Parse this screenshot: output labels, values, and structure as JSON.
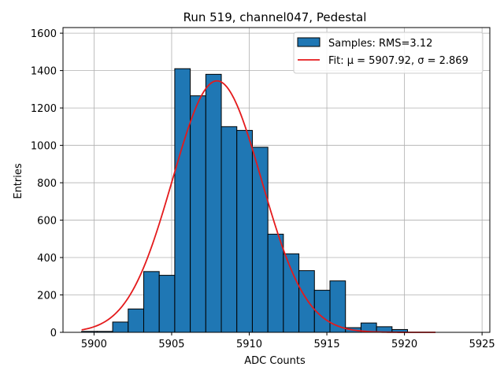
{
  "chart_data": {
    "type": "bar",
    "title": "Run 519, channel047, Pedestal",
    "xlabel": "ADC Counts",
    "ylabel": "Entries",
    "xlim": [
      5898,
      5925.5
    ],
    "ylim": [
      0,
      1630
    ],
    "xticks": [
      5900,
      5905,
      5910,
      5915,
      5920,
      5925
    ],
    "yticks": [
      0,
      200,
      400,
      600,
      800,
      1000,
      1200,
      1400,
      1600
    ],
    "grid": true,
    "legend_position": "top-right",
    "bin_edges": [
      5899.2,
      5900.2,
      5901.2,
      5902.2,
      5903.2,
      5904.2,
      5905.2,
      5906.2,
      5907.2,
      5908.2,
      5909.2,
      5910.2,
      5911.2,
      5912.2,
      5913.2,
      5914.2,
      5915.2,
      5916.2,
      5917.2,
      5918.2,
      5919.2,
      5920.2
    ],
    "series": [
      {
        "name": "Samples: RMS=3.12",
        "kind": "histogram",
        "color": "#1f77b4",
        "values": [
          5,
          5,
          55,
          125,
          325,
          305,
          1410,
          1265,
          1380,
          1100,
          1080,
          990,
          525,
          420,
          330,
          225,
          275,
          25,
          50,
          30,
          15
        ]
      },
      {
        "name": "Fit: μ = 5907.92, σ = 2.869",
        "kind": "gaussian-fit",
        "color": "#e41a1c",
        "mu": 5907.92,
        "sigma": 2.869,
        "amplitude": 1345,
        "x_range": [
          5899.2,
          5922.0
        ]
      }
    ]
  }
}
